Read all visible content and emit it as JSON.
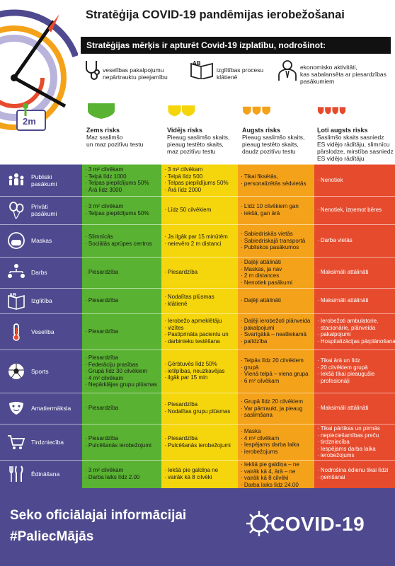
{
  "header": {
    "title": "Stratēģija COVID-19 pandēmijas ierobežošanai",
    "goal_banner": "Stratēģijas mērķis ir apturēt Covid-19 izplatību, nodrošinot:",
    "distance_label": "2m",
    "goals": [
      {
        "icon": "stethoscope-icon",
        "text": "veselības pakalpojumu\nnepārtrauktu pieejamību"
      },
      {
        "icon": "book-icon",
        "text": "izglītības procesu\nklātienē"
      },
      {
        "icon": "businessman-icon",
        "text": "ekonomisko aktivitāti,\nkas sabalansēta ar piesardzības\npasākumiem"
      }
    ],
    "risks": [
      {
        "title": "Zems risks",
        "desc": "Maz saslimšo\nun maz pozitīvu testu",
        "color": "#59b231"
      },
      {
        "title": "Vidējs risks",
        "desc": "Pieaug saslimšo skaits,\npieaug testēto skaits,\nmaz pozitīvu testu",
        "color": "#f5d50c"
      },
      {
        "title": "Augsts risks",
        "desc": "Pieaug saslimšo skaits,\npieaug testēto skaits,\ndaudz pozitīvu testu",
        "color": "#f4a21a"
      },
      {
        "title": "Ļoti augsts risks",
        "desc": "Saslimšo skaits sasniedz\nES vidējo rādītāju, slimnīcu\npārslodze, mirstība sasniedz\nES vidējo rādītāju",
        "color": "#e64b2d"
      }
    ]
  },
  "rows": [
    {
      "label": "Publiski\npasākumi",
      "icon": "crowd-icon",
      "cells": [
        [
          "3 m² cilvēkam",
          "Telpā līdz 1000",
          "Telpas piepildījums 50%",
          "Ārā līdz 3000"
        ],
        [
          "3 m² cilvēkam",
          "Telpā līdz 500",
          "Telpas piepildījums 50%",
          "Ārā līdz 2000"
        ],
        [
          "Tikai fiksētās,",
          "personalizētās sēdvietās"
        ],
        [
          "Nenotiek"
        ]
      ]
    },
    {
      "label": "Privāti\npasākumi",
      "icon": "balloons-icon",
      "cells": [
        [
          "3 m² cilvēkam",
          "Telpas piepildījums 50%"
        ],
        [
          "Līdz 50 cilvēkiem"
        ],
        [
          "Līdz 10 cilvēkiem gan",
          "iekšā, gan ārā"
        ],
        [
          "Nenotiek, izņemot bēres"
        ]
      ]
    },
    {
      "label": "Maskas",
      "icon": "mask-icon",
      "cells": [
        [
          "Slimnīcās",
          "Sociālās aprūpes centros"
        ],
        [
          "Ja ilgāk par 15 minūtēm",
          "neievēro 2 m distanci"
        ],
        [
          "Sabiedriskās vietās",
          "Sabiedriskajā transportā",
          "Publiskos pasākumos"
        ],
        [
          "Darba vietās"
        ]
      ]
    },
    {
      "label": "Darbs",
      "icon": "org-chart-icon",
      "cells": [
        [
          "Piesardzība"
        ],
        [
          "Piesardzība"
        ],
        [
          "Daļēji attālināti",
          "Maskas, ja nav",
          "2 m distances",
          "Nenotiek pasākumi"
        ],
        [
          "Maksimāli attālināti"
        ]
      ]
    },
    {
      "label": "Izglītība",
      "icon": "book-icon",
      "cells": [
        [
          "Piesardzība"
        ],
        [
          "Nodalītas plūsmas",
          "klātienē"
        ],
        [
          "Daļēji attālināti"
        ],
        [
          "Maksimāli attālināti"
        ]
      ]
    },
    {
      "label": "Veselība",
      "icon": "thermometer-icon",
      "cells": [
        [
          "Piesardzība"
        ],
        [
          "Ierobežo apmeklētāju",
          "vizītes",
          "Pastiprināta pacientu un",
          "darbinieku testēšana"
        ],
        [
          "Daļēji ierobežoti plānveida",
          "pakalpojumi",
          "Svarīgākā – neatliekamā",
          "palīdzība"
        ],
        [
          "Ierobežoti ambulatorie,",
          "stacionārie, plānveida",
          "pakalpojumi",
          "Hospitalizācijas pārplānošana"
        ]
      ]
    },
    {
      "label": "Sports",
      "icon": "football-icon",
      "cells": [
        [
          "Piesardzība",
          "Federāciju prasības",
          "Grupā līdz 30 cilvēkiem",
          "4 m² cilvēkam",
          "Nepārklājas grupu plūsmas"
        ],
        [
          "Ģērbtuvēs līdz 50%",
          "ietilpības, neuzkavējas",
          "ilgāk par 15 min"
        ],
        [
          "Telpās līdz 20 cilvēkiem",
          "grupā",
          "Vienā telpā – viena grupa",
          "6 m² cilvēkam"
        ],
        [
          "Tikai ārā un līdz",
          "20 cilvēkiem grupā",
          "Iekšā tikai pieaugušie",
          "profesionāļi"
        ]
      ]
    },
    {
      "label": "Amatiermāksla",
      "icon": "theater-masks-icon",
      "cells": [
        [
          "Piesardzība"
        ],
        [
          "Piesardzība",
          "Nodalītas grupu plūsmas"
        ],
        [
          "Grupā līdz 20 cilvēkiem",
          "Var pārtraukt, ja pieaug",
          "saslimšana"
        ],
        [
          "Maksimāli attālināti"
        ]
      ]
    },
    {
      "label": "Tirdzniecība",
      "icon": "shopping-cart-icon",
      "cells": [
        [
          "Piesardzība",
          "Pulcēšanās ierobežojumi"
        ],
        [
          "Piesardzība",
          "Pulcēšanās ierobežojumi"
        ],
        [
          "Maska",
          "4 m² cilvēkam",
          "Iespējams darba laika",
          "ierobežojums"
        ],
        [
          "Tikai pārtikas un pirmās",
          "nepieciešamības preču",
          "tirdzniecība",
          "Iespējams darba laika",
          "ierobežojums"
        ]
      ]
    },
    {
      "label": "Ēdināšana",
      "icon": "cutlery-icon",
      "cells": [
        [
          "3 m² cilvēkam",
          "Darba laiks līdz 2.00"
        ],
        [
          "Iekšā pie galdiņa ne",
          "vairāk kā 8 cilvēki"
        ],
        [
          "Iekšā pie galdiņa – ne",
          "vairāk kā 4, ārā – ne",
          "vairāk kā 8 cilvēki",
          "Darba laiks līdz 24.00"
        ],
        [
          "Nodrošina ēdienu tikai līdzi",
          "ņemšanai"
        ]
      ]
    }
  ],
  "footer": {
    "line1": "Seko oficiālajai informācijai",
    "line2": "#PaliecMājās",
    "logo_text": "COVID-19"
  }
}
